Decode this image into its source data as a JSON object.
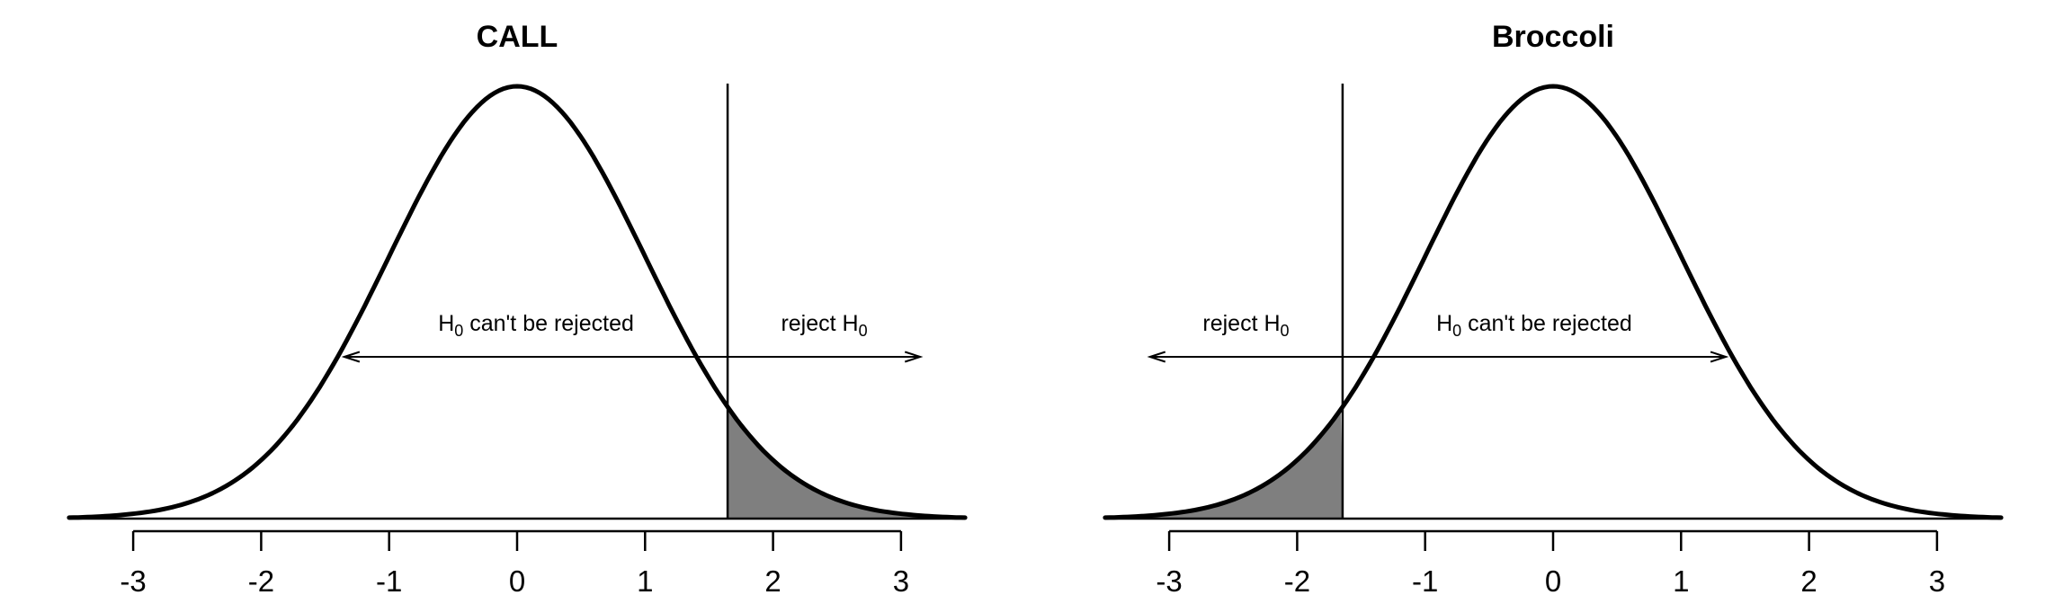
{
  "figure": {
    "background": "#ffffff",
    "curve_color": "#000000",
    "shade_color": "#7f7f7f"
  },
  "chart_data": {
    "type": "line",
    "description": "Two standard normal density curves illustrating one-sided hypothesis test rejection regions",
    "x_axis_range": [
      -3,
      3
    ],
    "curve_x_range": [
      -3.5,
      3.5
    ],
    "distribution": "standard normal pdf, mean 0, sd 1, peak density 0.3989",
    "grid": "off",
    "panels": [
      {
        "title": "CALL",
        "x_ticks": [
          -3,
          -2,
          -1,
          0,
          1,
          2,
          3
        ],
        "critical_value": 1.645,
        "shaded_region": {
          "from": 1.645,
          "to": 3.5,
          "side": "right",
          "color": "#7f7f7f"
        },
        "arrow": {
          "from": -1.35,
          "to": 3.15,
          "double_headed": true
        },
        "region_labels": [
          {
            "text": "H₀ can't be rejected",
            "center_sigma": 0.148
          },
          {
            "text": "reject H₀",
            "center_sigma": 2.4
          }
        ]
      },
      {
        "title": "Broccoli",
        "x_ticks": [
          -3,
          -2,
          -1,
          0,
          1,
          2,
          3
        ],
        "critical_value": -1.645,
        "shaded_region": {
          "from": -3.5,
          "to": -1.645,
          "side": "left",
          "color": "#7f7f7f"
        },
        "arrow": {
          "from": -3.15,
          "to": 1.35,
          "double_headed": true
        },
        "region_labels": [
          {
            "text": "reject H₀",
            "center_sigma": -2.4
          },
          {
            "text": "H₀ can't be rejected",
            "center_sigma": -0.148
          }
        ]
      }
    ]
  }
}
